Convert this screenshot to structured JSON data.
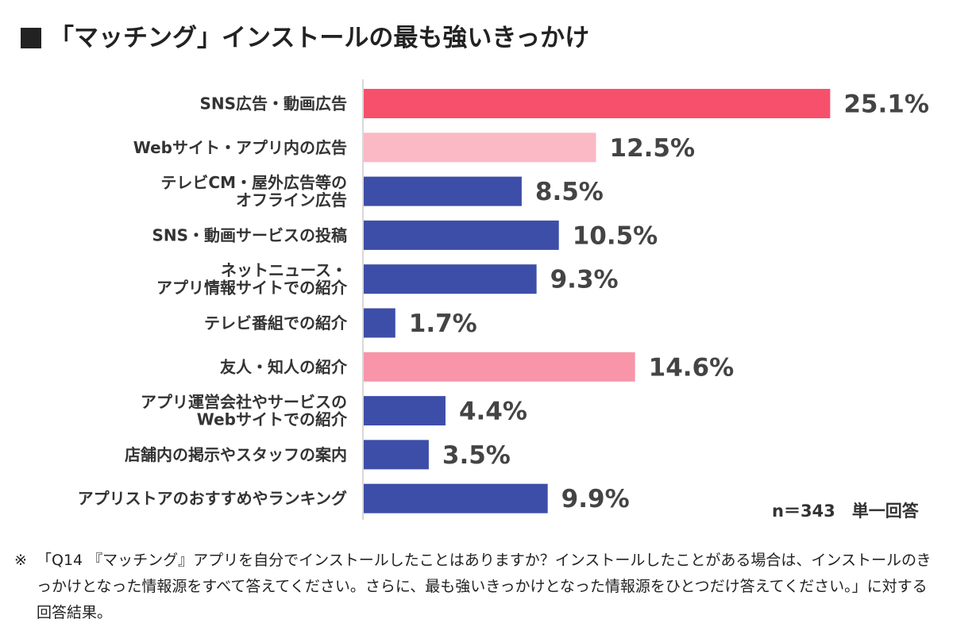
{
  "title": "「マッチング」インストールの最も強いきっかけ",
  "note": "n＝343　単一回答",
  "footnote": {
    "mark": "※",
    "text": "「Q14 『マッチング』アプリを自分でインストールしたことはありますか？インストールしたことがある場合は、インストールのきっかけとなった情報源をすべて答えてください。さらに、最も強いきっかけとなった情報源をひとつだけ答えてください。」に対する回答結果。"
  },
  "chart_data": {
    "type": "bar",
    "orientation": "horizontal",
    "title": "「マッチング」インストールの最も強いきっかけ",
    "unit": "%",
    "xlim": [
      0,
      30
    ],
    "categories": [
      [
        "SNS広告・動画広告"
      ],
      [
        "Webサイト・アプリ内の広告"
      ],
      [
        "テレビCM・屋外広告等の",
        "オフライン広告"
      ],
      [
        "SNS・動画サービスの投稿"
      ],
      [
        "ネットニュース・",
        "アプリ情報サイトでの紹介"
      ],
      [
        "テレビ番組での紹介"
      ],
      [
        "友人・知人の紹介"
      ],
      [
        "アプリ運営会社やサービスの",
        "Webサイトでの紹介"
      ],
      [
        "店舗内の掲示やスタッフの案内"
      ],
      [
        "アプリストアのおすすめやランキング"
      ]
    ],
    "values": [
      25.1,
      12.5,
      8.5,
      10.5,
      9.3,
      1.7,
      14.6,
      4.4,
      3.5,
      9.9
    ],
    "value_labels": [
      "25.1%",
      "12.5%",
      "8.5%",
      "10.5%",
      "9.3%",
      "1.7%",
      "14.6%",
      "4.4%",
      "3.5%",
      "9.9%"
    ],
    "colors": [
      "#f7506c",
      "#fbb8c5",
      "#3d4ea8",
      "#3d4ea8",
      "#3d4ea8",
      "#3d4ea8",
      "#f895a9",
      "#3d4ea8",
      "#3d4ea8",
      "#3d4ea8"
    ]
  }
}
